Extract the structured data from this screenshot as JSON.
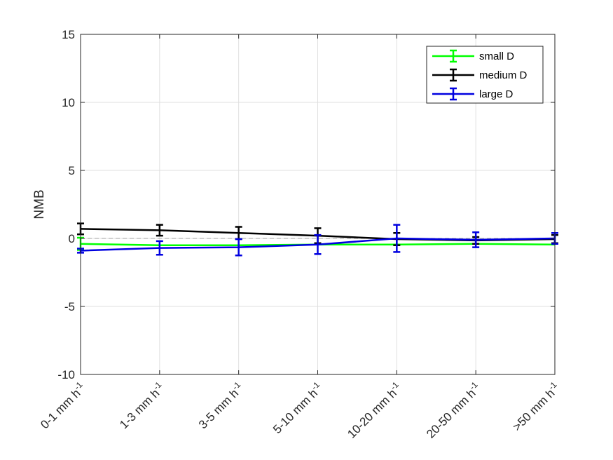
{
  "chart_data": {
    "type": "line",
    "ylabel": "NMB",
    "ylim": [
      -10,
      15
    ],
    "yticks": [
      -10,
      -5,
      0,
      5,
      10,
      15
    ],
    "yticklabels": [
      "-10",
      "-5",
      "0",
      "5",
      "10",
      "15"
    ],
    "grid": true,
    "reference_line": 0,
    "legend_position": "top-right",
    "categories": [
      {
        "main": "0-1 mm h",
        "sup": "-1"
      },
      {
        "main": "1-3 mm h",
        "sup": "-1"
      },
      {
        "main": "3-5 mm h",
        "sup": "-1"
      },
      {
        "main": "5-10 mm h",
        "sup": "-1"
      },
      {
        "main": "10-20 mm h",
        "sup": "-1"
      },
      {
        "main": "20-50 mm h",
        "sup": "-1"
      },
      {
        "main": ">50 mm h",
        "sup": "-1"
      }
    ],
    "series": [
      {
        "name": "small D",
        "color": "#00ff00",
        "values": [
          -0.4,
          -0.5,
          -0.5,
          -0.45,
          -0.45,
          -0.4,
          -0.45
        ],
        "err": [
          0.45,
          0,
          0,
          0,
          0,
          0,
          0
        ]
      },
      {
        "name": "medium D",
        "color": "#000000",
        "values": [
          0.7,
          0.6,
          0.4,
          0.2,
          -0.05,
          -0.15,
          -0.05
        ],
        "err": [
          0.4,
          0.4,
          0.45,
          0.55,
          0.45,
          0.25,
          0.3
        ]
      },
      {
        "name": "large D",
        "color": "#0000e0",
        "values": [
          -0.9,
          -0.7,
          -0.65,
          -0.45,
          0,
          -0.1,
          0
        ],
        "err": [
          0.15,
          0.5,
          0.6,
          0.7,
          1.0,
          0.55,
          0.4
        ]
      }
    ]
  }
}
